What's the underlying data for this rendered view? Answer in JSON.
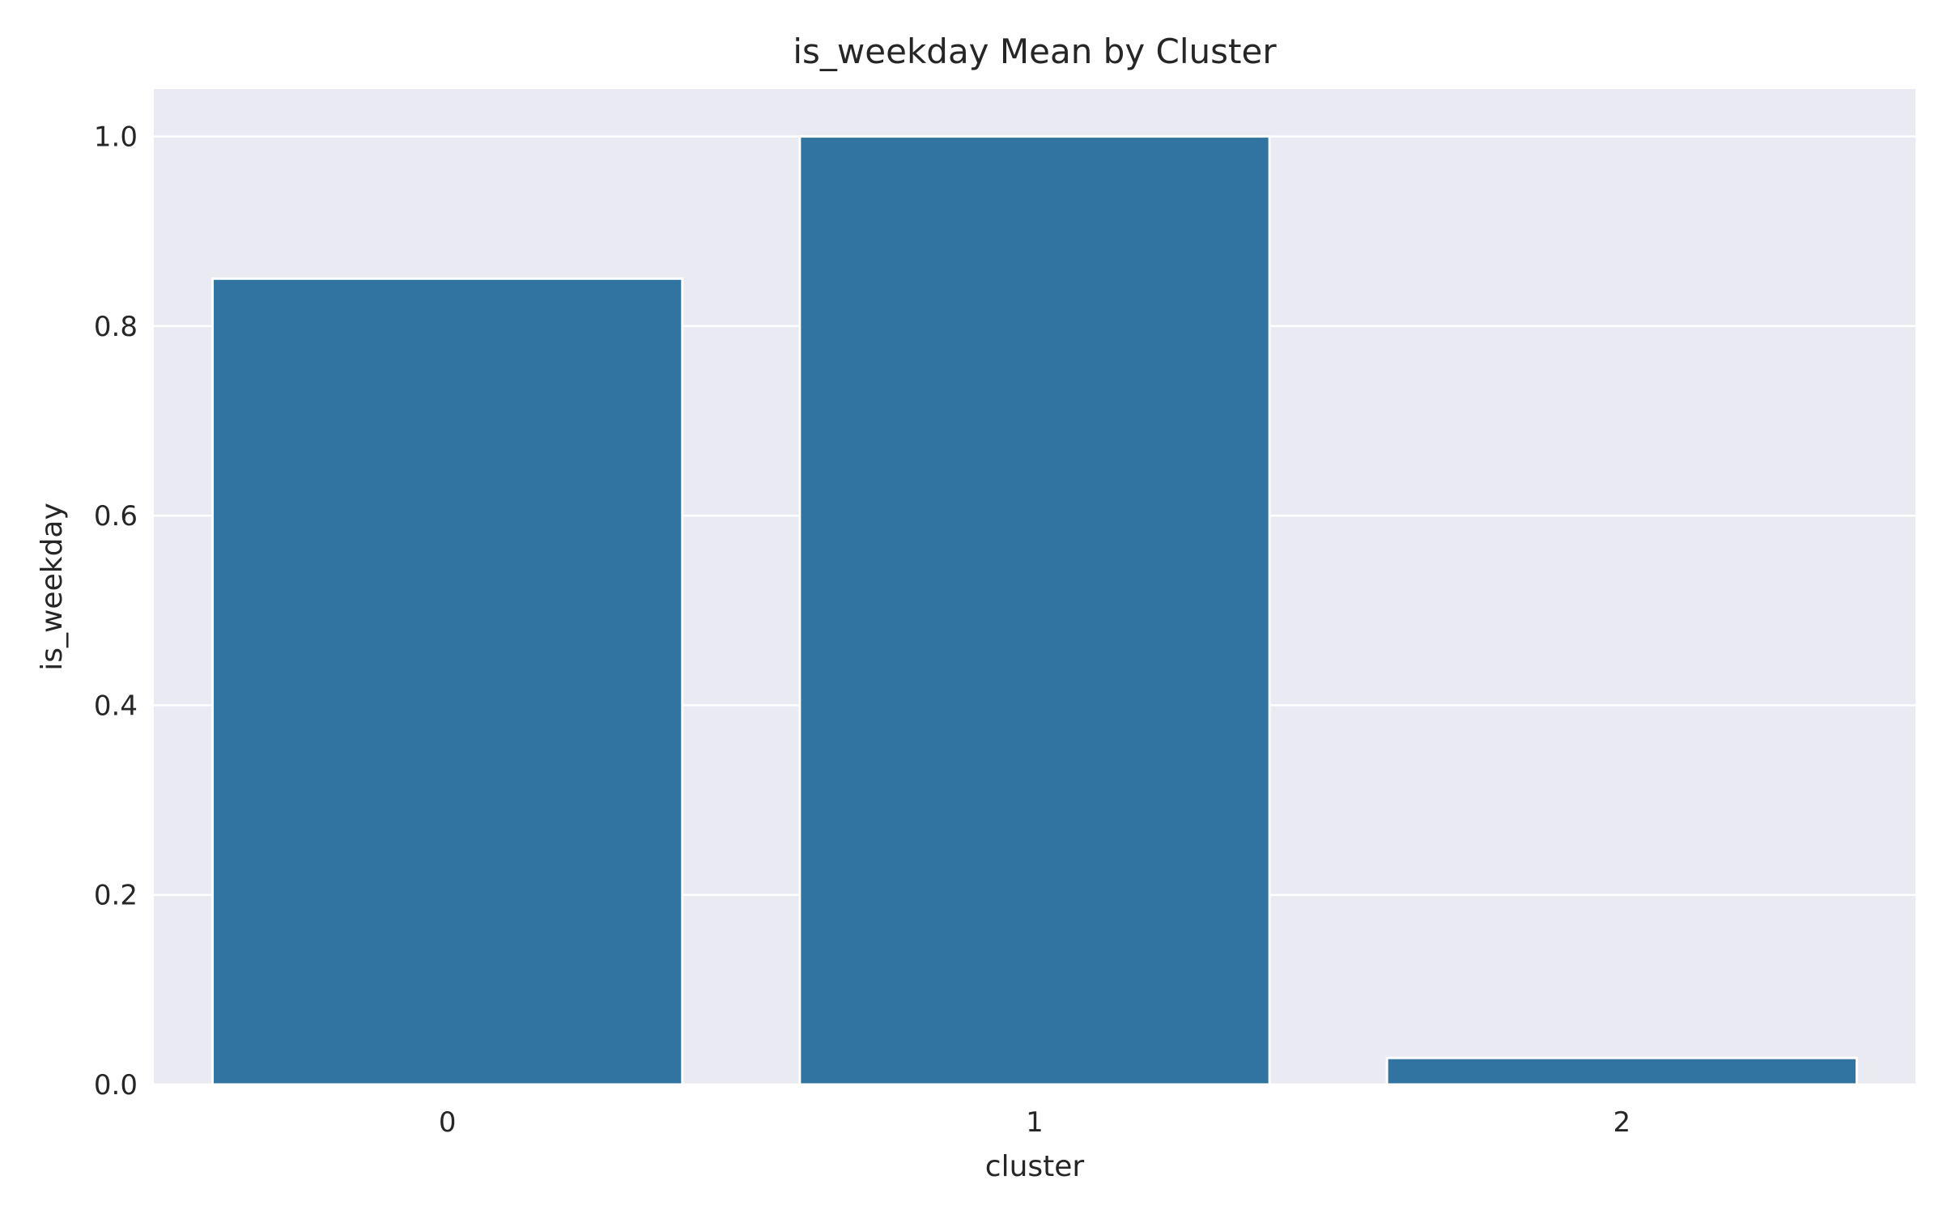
{
  "chart_data": {
    "type": "bar",
    "title": "is_weekday Mean by Cluster",
    "xlabel": "cluster",
    "ylabel": "is_weekday",
    "categories": [
      "0",
      "1",
      "2"
    ],
    "values": [
      0.85,
      1.0,
      0.028
    ],
    "ylim": [
      0,
      1.05
    ],
    "yticks": [
      "0.0",
      "0.2",
      "0.4",
      "0.6",
      "0.8",
      "1.0"
    ],
    "grid": true,
    "legend": "none",
    "colors": {
      "bar": "#3274a1",
      "plot_background": "#eaeaf2",
      "grid": "#ffffff",
      "text": "#262626"
    }
  }
}
